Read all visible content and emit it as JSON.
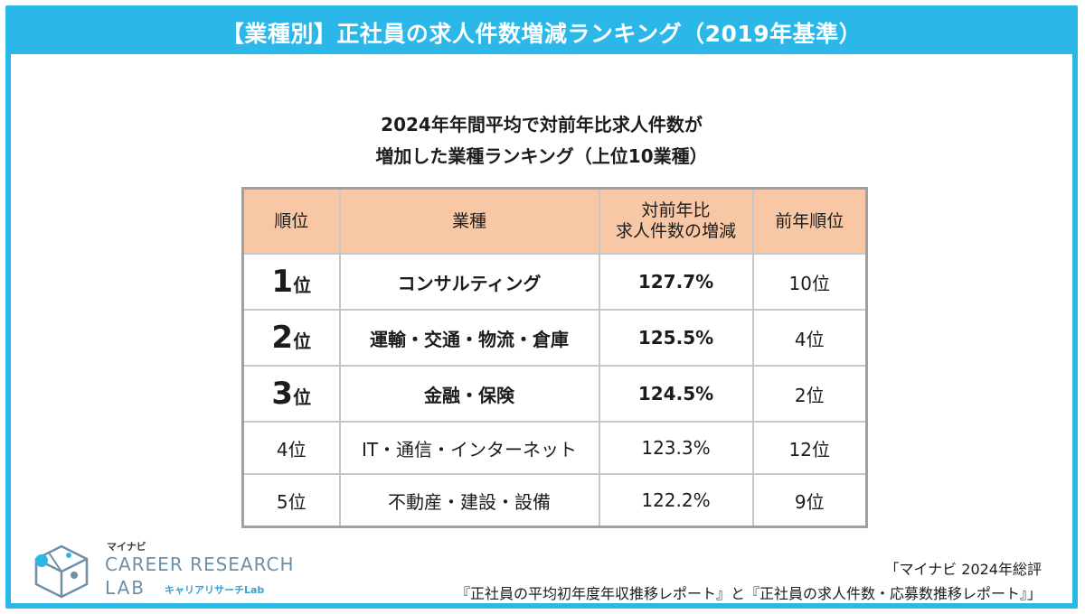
{
  "header": {
    "title": "【業種別】正社員の求人件数増減ランキング（2019年基準）"
  },
  "subtitle": {
    "line1": "2024年年間平均で対前年比求人件数が",
    "line2": "増加した業種ランキング（上位10業種）"
  },
  "table": {
    "headers": {
      "rank": "順位",
      "industry": "業種",
      "change_line1": "対前年比",
      "change_line2": "求人件数の増減",
      "prev_rank": "前年順位"
    },
    "rows": [
      {
        "rank_num": "1",
        "rank_suffix": "位",
        "industry": "コンサルティング",
        "change": "127.7%",
        "prev": "10位"
      },
      {
        "rank_num": "2",
        "rank_suffix": "位",
        "industry": "運輸・交通・物流・倉庫",
        "change": "125.5%",
        "prev": "4位"
      },
      {
        "rank_num": "3",
        "rank_suffix": "位",
        "industry": "金融・保険",
        "change": "124.5%",
        "prev": "2位"
      },
      {
        "rank": "4位",
        "industry": "IT・通信・インターネット",
        "change": "123.3%",
        "prev": "12位"
      },
      {
        "rank": "5位",
        "industry": "不動産・建設・設備",
        "change": "122.2%",
        "prev": "9位"
      }
    ],
    "colors": {
      "header_bg": "#f8c8a6",
      "highlight_red": "#e0302a"
    }
  },
  "logo": {
    "brand_small": "マイナビ",
    "line1": "CAREER RESEARCH",
    "line2": "LAB",
    "kana": "キャリアリサーチLab",
    "icon": "cube-network-icon"
  },
  "source": {
    "line1": "「マイナビ 2024年総評",
    "line2": "『正社員の平均初年度年収推移レポート』と『正社員の求人件数・応募数推移レポート』」"
  },
  "colors": {
    "frame": "#2bb7e8"
  }
}
